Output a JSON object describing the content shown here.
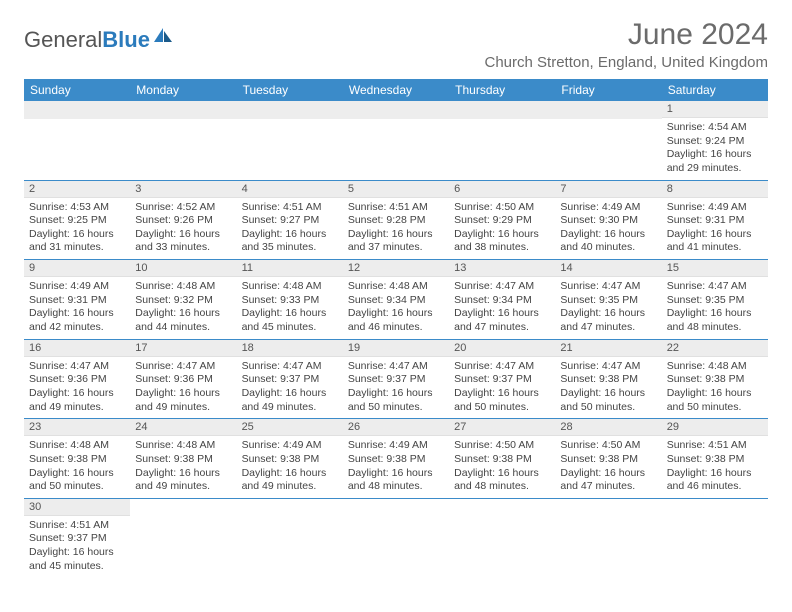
{
  "logo": {
    "part1": "General",
    "part2": "Blue"
  },
  "title": "June 2024",
  "location": "Church Stretton, England, United Kingdom",
  "colors": {
    "header_bg": "#3b8bc9",
    "header_text": "#ffffff",
    "daynum_bg": "#ededed",
    "border": "#3b8bc9",
    "title_color": "#6b6b6b"
  },
  "weekdays": [
    "Sunday",
    "Monday",
    "Tuesday",
    "Wednesday",
    "Thursday",
    "Friday",
    "Saturday"
  ],
  "weeks": [
    [
      null,
      null,
      null,
      null,
      null,
      null,
      {
        "n": "1",
        "sunrise": "4:54 AM",
        "sunset": "9:24 PM",
        "dl1": "Daylight: 16 hours",
        "dl2": "and 29 minutes."
      }
    ],
    [
      {
        "n": "2",
        "sunrise": "4:53 AM",
        "sunset": "9:25 PM",
        "dl1": "Daylight: 16 hours",
        "dl2": "and 31 minutes."
      },
      {
        "n": "3",
        "sunrise": "4:52 AM",
        "sunset": "9:26 PM",
        "dl1": "Daylight: 16 hours",
        "dl2": "and 33 minutes."
      },
      {
        "n": "4",
        "sunrise": "4:51 AM",
        "sunset": "9:27 PM",
        "dl1": "Daylight: 16 hours",
        "dl2": "and 35 minutes."
      },
      {
        "n": "5",
        "sunrise": "4:51 AM",
        "sunset": "9:28 PM",
        "dl1": "Daylight: 16 hours",
        "dl2": "and 37 minutes."
      },
      {
        "n": "6",
        "sunrise": "4:50 AM",
        "sunset": "9:29 PM",
        "dl1": "Daylight: 16 hours",
        "dl2": "and 38 minutes."
      },
      {
        "n": "7",
        "sunrise": "4:49 AM",
        "sunset": "9:30 PM",
        "dl1": "Daylight: 16 hours",
        "dl2": "and 40 minutes."
      },
      {
        "n": "8",
        "sunrise": "4:49 AM",
        "sunset": "9:31 PM",
        "dl1": "Daylight: 16 hours",
        "dl2": "and 41 minutes."
      }
    ],
    [
      {
        "n": "9",
        "sunrise": "4:49 AM",
        "sunset": "9:31 PM",
        "dl1": "Daylight: 16 hours",
        "dl2": "and 42 minutes."
      },
      {
        "n": "10",
        "sunrise": "4:48 AM",
        "sunset": "9:32 PM",
        "dl1": "Daylight: 16 hours",
        "dl2": "and 44 minutes."
      },
      {
        "n": "11",
        "sunrise": "4:48 AM",
        "sunset": "9:33 PM",
        "dl1": "Daylight: 16 hours",
        "dl2": "and 45 minutes."
      },
      {
        "n": "12",
        "sunrise": "4:48 AM",
        "sunset": "9:34 PM",
        "dl1": "Daylight: 16 hours",
        "dl2": "and 46 minutes."
      },
      {
        "n": "13",
        "sunrise": "4:47 AM",
        "sunset": "9:34 PM",
        "dl1": "Daylight: 16 hours",
        "dl2": "and 47 minutes."
      },
      {
        "n": "14",
        "sunrise": "4:47 AM",
        "sunset": "9:35 PM",
        "dl1": "Daylight: 16 hours",
        "dl2": "and 47 minutes."
      },
      {
        "n": "15",
        "sunrise": "4:47 AM",
        "sunset": "9:35 PM",
        "dl1": "Daylight: 16 hours",
        "dl2": "and 48 minutes."
      }
    ],
    [
      {
        "n": "16",
        "sunrise": "4:47 AM",
        "sunset": "9:36 PM",
        "dl1": "Daylight: 16 hours",
        "dl2": "and 49 minutes."
      },
      {
        "n": "17",
        "sunrise": "4:47 AM",
        "sunset": "9:36 PM",
        "dl1": "Daylight: 16 hours",
        "dl2": "and 49 minutes."
      },
      {
        "n": "18",
        "sunrise": "4:47 AM",
        "sunset": "9:37 PM",
        "dl1": "Daylight: 16 hours",
        "dl2": "and 49 minutes."
      },
      {
        "n": "19",
        "sunrise": "4:47 AM",
        "sunset": "9:37 PM",
        "dl1": "Daylight: 16 hours",
        "dl2": "and 50 minutes."
      },
      {
        "n": "20",
        "sunrise": "4:47 AM",
        "sunset": "9:37 PM",
        "dl1": "Daylight: 16 hours",
        "dl2": "and 50 minutes."
      },
      {
        "n": "21",
        "sunrise": "4:47 AM",
        "sunset": "9:38 PM",
        "dl1": "Daylight: 16 hours",
        "dl2": "and 50 minutes."
      },
      {
        "n": "22",
        "sunrise": "4:48 AM",
        "sunset": "9:38 PM",
        "dl1": "Daylight: 16 hours",
        "dl2": "and 50 minutes."
      }
    ],
    [
      {
        "n": "23",
        "sunrise": "4:48 AM",
        "sunset": "9:38 PM",
        "dl1": "Daylight: 16 hours",
        "dl2": "and 50 minutes."
      },
      {
        "n": "24",
        "sunrise": "4:48 AM",
        "sunset": "9:38 PM",
        "dl1": "Daylight: 16 hours",
        "dl2": "and 49 minutes."
      },
      {
        "n": "25",
        "sunrise": "4:49 AM",
        "sunset": "9:38 PM",
        "dl1": "Daylight: 16 hours",
        "dl2": "and 49 minutes."
      },
      {
        "n": "26",
        "sunrise": "4:49 AM",
        "sunset": "9:38 PM",
        "dl1": "Daylight: 16 hours",
        "dl2": "and 48 minutes."
      },
      {
        "n": "27",
        "sunrise": "4:50 AM",
        "sunset": "9:38 PM",
        "dl1": "Daylight: 16 hours",
        "dl2": "and 48 minutes."
      },
      {
        "n": "28",
        "sunrise": "4:50 AM",
        "sunset": "9:38 PM",
        "dl1": "Daylight: 16 hours",
        "dl2": "and 47 minutes."
      },
      {
        "n": "29",
        "sunrise": "4:51 AM",
        "sunset": "9:38 PM",
        "dl1": "Daylight: 16 hours",
        "dl2": "and 46 minutes."
      }
    ],
    [
      {
        "n": "30",
        "sunrise": "4:51 AM",
        "sunset": "9:37 PM",
        "dl1": "Daylight: 16 hours",
        "dl2": "and 45 minutes."
      },
      null,
      null,
      null,
      null,
      null,
      null
    ]
  ],
  "labels": {
    "sunrise_prefix": "Sunrise: ",
    "sunset_prefix": "Sunset: "
  }
}
